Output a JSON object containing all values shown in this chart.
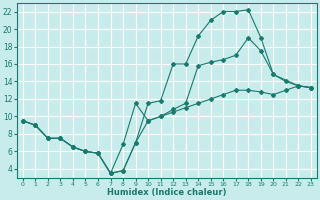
{
  "xlabel": "Humidex (Indice chaleur)",
  "bg_color": "#c8ecec",
  "grid_color": "#ffffff",
  "line_color": "#1a7a6e",
  "xlim": [
    -0.5,
    23.5
  ],
  "ylim": [
    3,
    23
  ],
  "yticks": [
    4,
    6,
    8,
    10,
    12,
    14,
    16,
    18,
    20,
    22
  ],
  "xticks": [
    0,
    1,
    2,
    3,
    4,
    5,
    6,
    7,
    8,
    9,
    10,
    11,
    12,
    13,
    14,
    15,
    16,
    17,
    18,
    19,
    20,
    21,
    22,
    23
  ],
  "line1_x": [
    0,
    1,
    2,
    3,
    4,
    5,
    6,
    7,
    8,
    9,
    10,
    11,
    12,
    13,
    14,
    15,
    16,
    17,
    18,
    19,
    20,
    21,
    22,
    23
  ],
  "line1_y": [
    9.5,
    9.0,
    7.5,
    7.5,
    6.5,
    6.0,
    5.8,
    3.5,
    3.8,
    7.0,
    11.5,
    11.8,
    16.0,
    16.0,
    19.2,
    21.0,
    22.0,
    22.0,
    22.2,
    19.0,
    14.8,
    14.0,
    13.5,
    13.3
  ],
  "line2_x": [
    0,
    1,
    2,
    3,
    4,
    5,
    6,
    7,
    8,
    9,
    10,
    11,
    12,
    13,
    14,
    15,
    16,
    17,
    18,
    19,
    20,
    22,
    23
  ],
  "line2_y": [
    9.5,
    9.0,
    7.5,
    7.5,
    6.5,
    6.0,
    5.8,
    3.5,
    6.8,
    11.5,
    9.5,
    10.0,
    10.8,
    11.5,
    15.8,
    16.2,
    16.5,
    17.0,
    19.0,
    17.5,
    14.8,
    13.5,
    13.3
  ],
  "line3_x": [
    0,
    1,
    2,
    3,
    4,
    5,
    6,
    7,
    8,
    9,
    10,
    11,
    12,
    13,
    14,
    15,
    16,
    17,
    18,
    19,
    20,
    21,
    22,
    23
  ],
  "line3_y": [
    9.5,
    9.0,
    7.5,
    7.5,
    6.5,
    6.0,
    5.8,
    3.5,
    3.8,
    7.0,
    9.5,
    10.0,
    10.5,
    11.0,
    11.5,
    12.0,
    12.5,
    13.0,
    13.0,
    12.8,
    12.5,
    13.0,
    13.5,
    13.3
  ]
}
